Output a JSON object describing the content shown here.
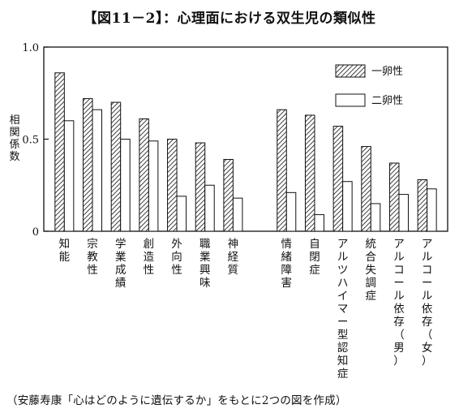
{
  "title": "【図11－2】：心理面における双生児の類似性",
  "source": "（安藤寿康「心はどのように遺伝するか」をもとに2つの図を作成）",
  "chart_data": {
    "type": "bar",
    "title": "【図11－2】：心理面における双生児の類似性",
    "ylabel": "相関係数",
    "ylim": [
      0,
      1.0
    ],
    "yticks": [
      "0",
      "0.5",
      "1.0"
    ],
    "ytick_values": [
      0,
      0.5,
      1.0
    ],
    "legend_position": "top-right",
    "categories": [
      "知能",
      "宗教性",
      "学業成績",
      "創造性",
      "外向性",
      "職業興味",
      "神経質",
      "情緒障害",
      "自閉症",
      "アルツハイマー型認知症",
      "統合失調症",
      "アルコール依存（男）",
      "アルコール依存（女）"
    ],
    "gap_after_index": 6,
    "series": [
      {
        "name": "一卵性",
        "pattern": "hatched",
        "values": [
          0.86,
          0.72,
          0.7,
          0.61,
          0.5,
          0.48,
          0.39,
          0.66,
          0.63,
          0.57,
          0.46,
          0.37,
          0.28
        ]
      },
      {
        "name": "二卵性",
        "pattern": "white",
        "values": [
          0.6,
          0.66,
          0.5,
          0.49,
          0.19,
          0.25,
          0.18,
          0.21,
          0.09,
          0.27,
          0.15,
          0.2,
          0.23
        ]
      }
    ]
  }
}
